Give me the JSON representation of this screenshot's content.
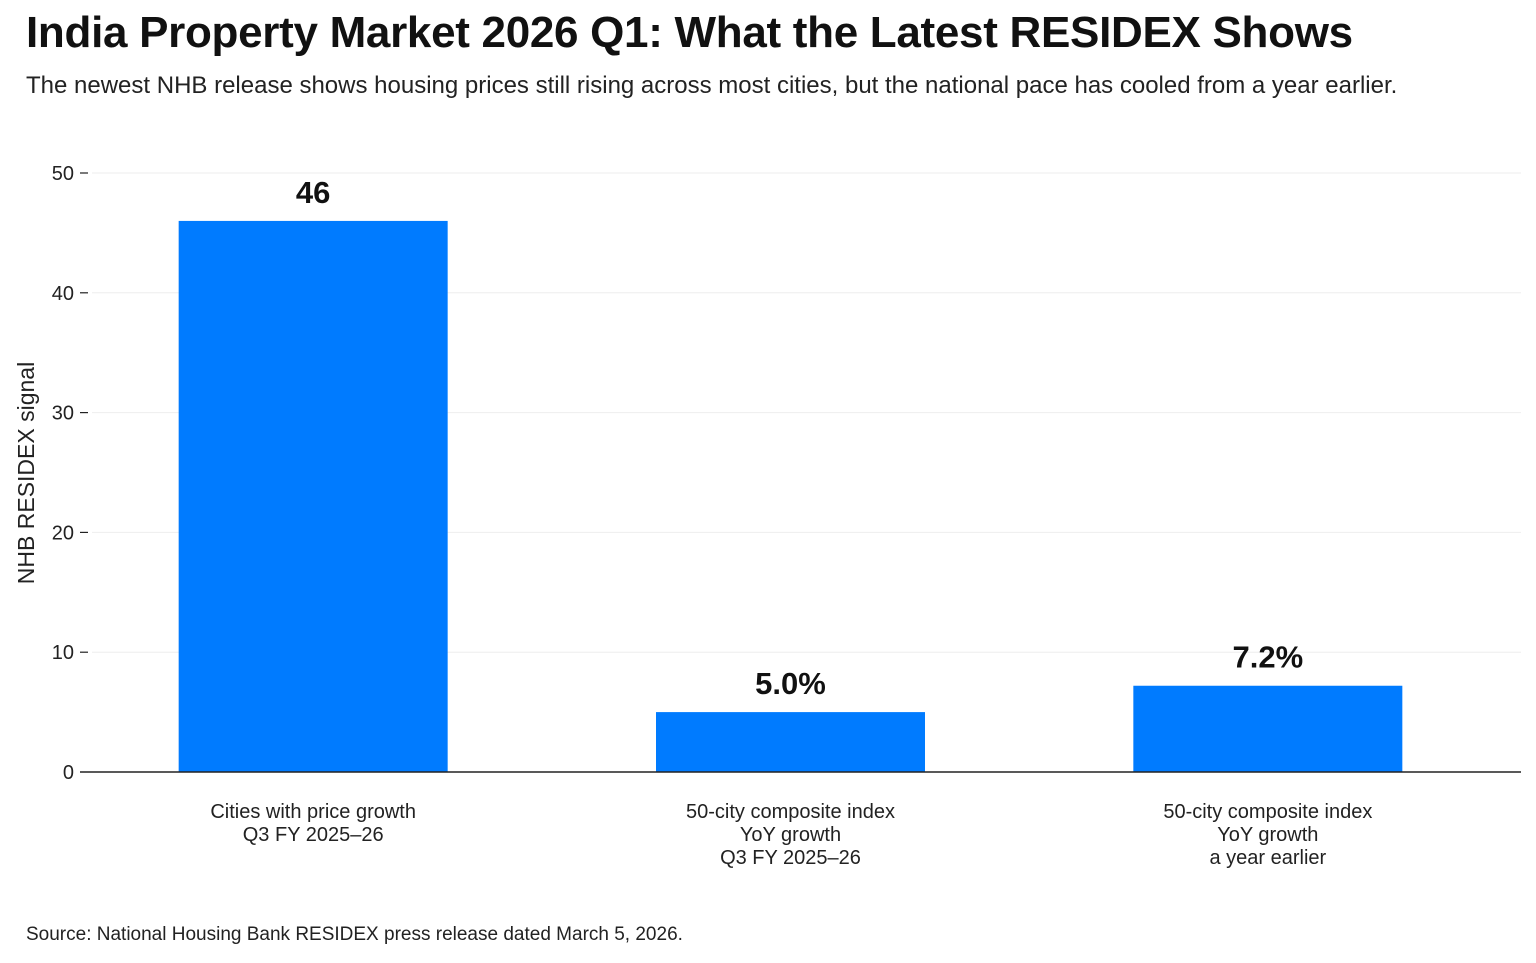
{
  "title": "India Property Market 2026 Q1: What the Latest RESIDEX Shows",
  "subtitle": "The newest NHB release shows housing prices still rising across most cities, but the national pace has cooled from a year earlier.",
  "source": "Source: National Housing Bank RESIDEX press release dated March 5, 2026.",
  "colors": {
    "bar": "#007bff",
    "axis": "#222222",
    "grid": "#eeeeee"
  },
  "chart_data": {
    "type": "bar",
    "categories": [
      [
        "Cities with price growth",
        "Q3 FY 2025–26"
      ],
      [
        "50-city composite index",
        "YoY growth",
        "Q3 FY 2025–26"
      ],
      [
        "50-city composite index",
        "YoY growth",
        "a year earlier"
      ]
    ],
    "values": [
      46,
      5.0,
      7.2
    ],
    "value_labels": [
      "46",
      "5.0%",
      "7.2%"
    ],
    "ylabel": "NHB RESIDEX signal",
    "ylim": [
      0,
      50
    ],
    "yticks": [
      0,
      10,
      20,
      30,
      40,
      50
    ],
    "grid": true,
    "legend": "none"
  }
}
